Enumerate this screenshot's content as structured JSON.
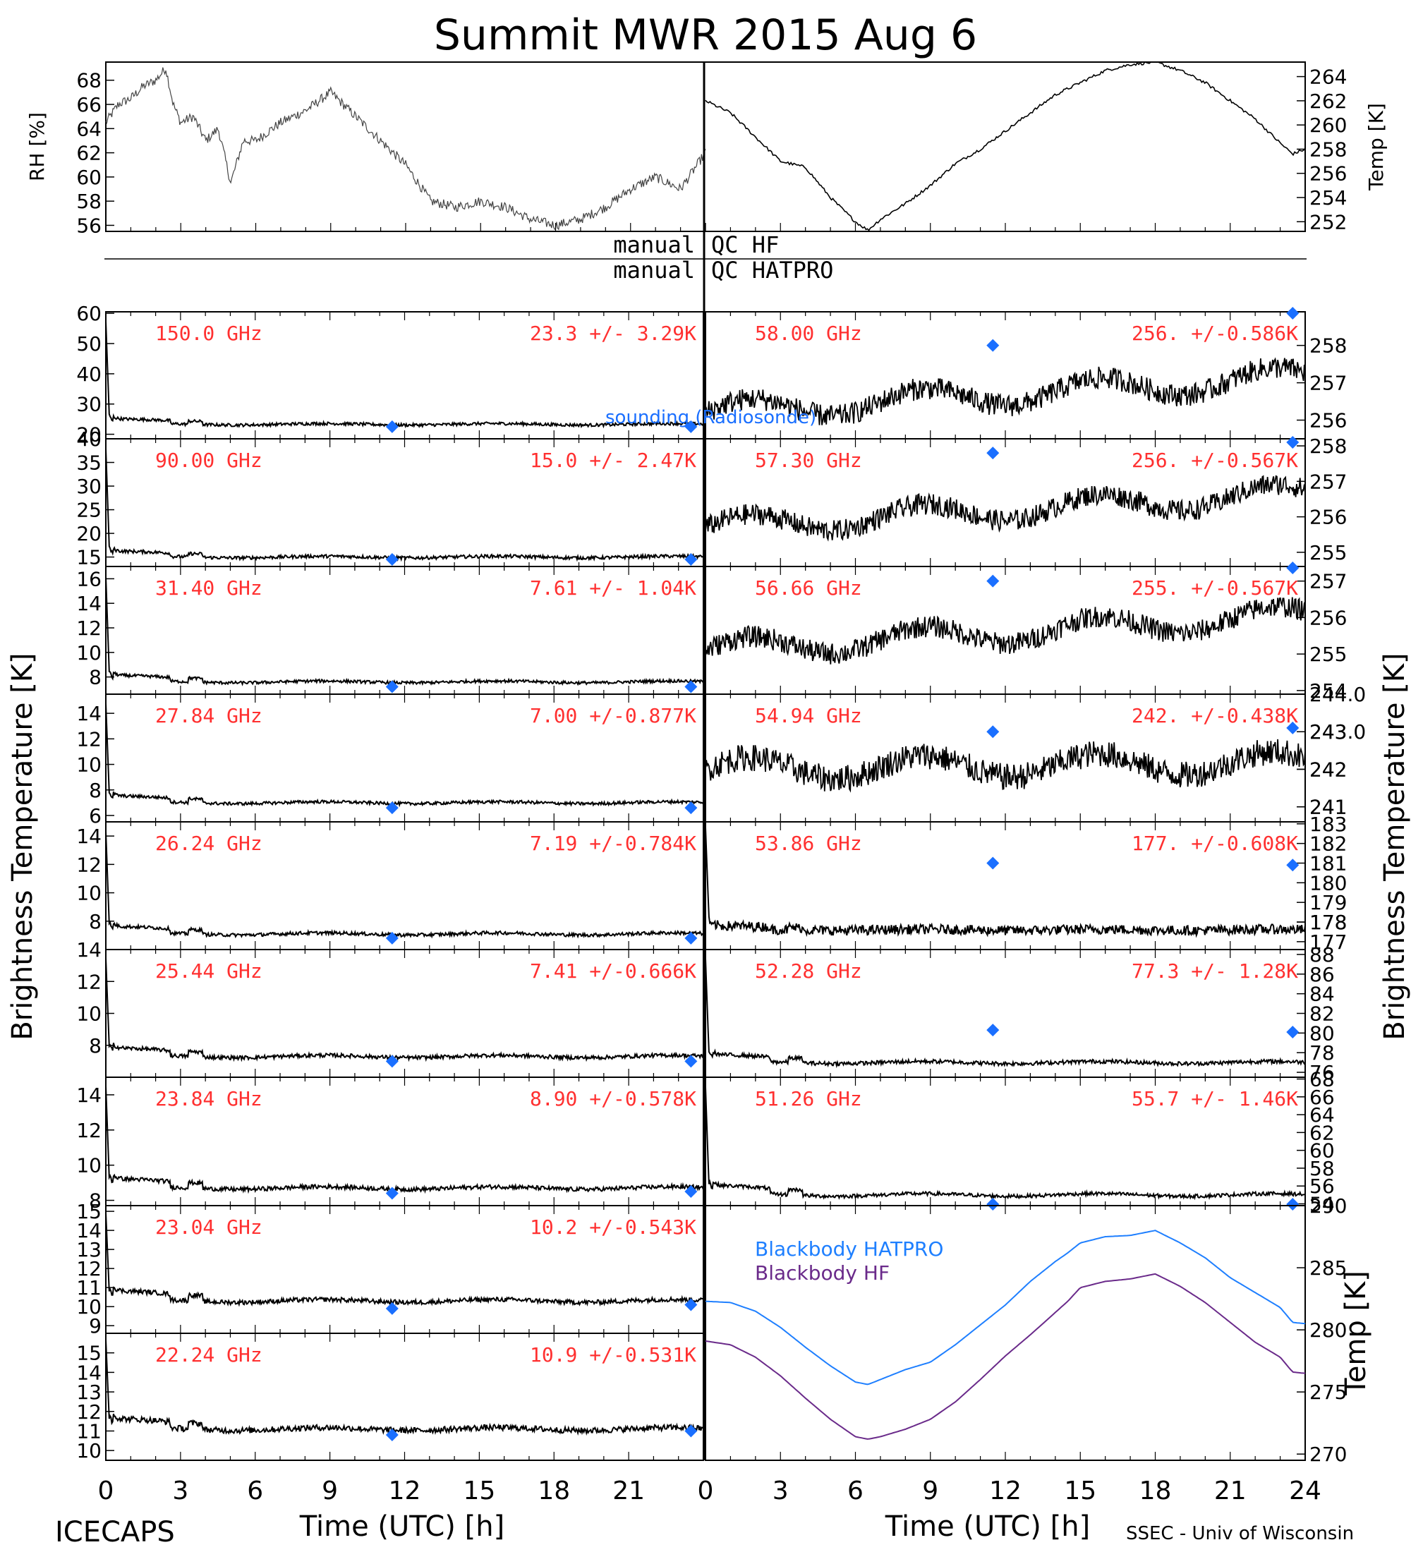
{
  "title": "Summit MWR 2015 Aug  6",
  "footer_left": "ICECAPS",
  "footer_right": "SSEC - Univ of Wisconsin",
  "xlabel": "Time (UTC) [h]",
  "left_ylabel": "Brightness Temperature [K]",
  "right_ylabel": "Brightness Temperature [K]",
  "qc_labels": {
    "hf_left": "manual",
    "hf_right": "QC HF",
    "hatpro_left": "manual",
    "hatpro_right": "QC HATPRO"
  },
  "sounding_label": "sounding (Radiosonde)",
  "colors": {
    "trace": "#000000",
    "channel_text": "#ff3030",
    "sounding": "#1a6fff",
    "bb_hatpro": "#1e7fff",
    "bb_hf": "#6a2a8a"
  },
  "chart_data": [
    {
      "id": "met",
      "type": "line",
      "xlim": [
        0,
        24
      ],
      "left_axis": {
        "label": "RH [%]",
        "ticks": [
          "56",
          "58",
          "60",
          "62",
          "64",
          "66",
          "68"
        ],
        "ylim": [
          55.5,
          69.5
        ]
      },
      "right_axis": {
        "label": "Temp [K]",
        "ticks": [
          "252",
          "254",
          "256",
          "258",
          "260",
          "262",
          "264"
        ],
        "ylim": [
          251.2,
          265.2
        ]
      },
      "series": [
        {
          "axis": "left",
          "x": [
            0,
            0.5,
            1,
            1.5,
            2,
            2.4,
            2.7,
            3,
            3.5,
            4,
            4.5,
            5,
            5.5,
            6,
            7,
            8,
            9,
            10,
            11,
            12,
            13,
            14,
            15,
            16,
            17,
            18,
            19,
            20,
            21,
            22,
            23,
            24
          ],
          "y": [
            64.5,
            66,
            66.5,
            67.5,
            68,
            69,
            66,
            64.5,
            65,
            63,
            64,
            59.5,
            63,
            63,
            64.5,
            65.5,
            67,
            65,
            63,
            61,
            58,
            57.5,
            58,
            57.5,
            56.5,
            56,
            56.5,
            57.5,
            59,
            60,
            59,
            62
          ]
        },
        {
          "axis": "right",
          "x": [
            0,
            1,
            2,
            3,
            4,
            5,
            6,
            6.5,
            7,
            8,
            9,
            10,
            11,
            12,
            13,
            14,
            15,
            16,
            17,
            18,
            19,
            20,
            21,
            22,
            23,
            23.5,
            24
          ],
          "y": [
            262,
            261,
            259,
            257,
            256.5,
            254,
            252,
            251.3,
            252.2,
            253.5,
            255,
            256.8,
            258,
            259.5,
            261,
            262.5,
            263.5,
            264.5,
            265,
            265.2,
            264.5,
            263.5,
            262,
            260.5,
            258.5,
            257.6,
            258
          ]
        }
      ]
    },
    {
      "id": "L150",
      "type": "line",
      "label": "150.0 GHz",
      "stats": "23.3 +/-  3.29K",
      "ticks": [
        "20",
        "30",
        "40",
        "50",
        "60"
      ],
      "ylim": [
        18.5,
        60.5
      ],
      "mean": 23.3,
      "noise": 0.5,
      "shape": "trop",
      "amp": 1.0,
      "sounding": [
        [
          11.5,
          22.5
        ],
        [
          23.5,
          22.5
        ]
      ]
    },
    {
      "id": "L90",
      "type": "line",
      "label": "90.00 GHz",
      "stats": "15.0 +/-  2.47K",
      "ticks": [
        "15",
        "20",
        "25",
        "30",
        "35",
        "40"
      ],
      "ylim": [
        13,
        40
      ],
      "mean": 15.0,
      "noise": 0.35,
      "shape": "trop",
      "amp": 0.7,
      "sounding": [
        [
          11.5,
          14.5
        ],
        [
          23.5,
          14.5
        ]
      ]
    },
    {
      "id": "L31",
      "type": "line",
      "label": "31.40 GHz",
      "stats": "7.61 +/- 1.04K",
      "ticks": [
        "8",
        "10",
        "12",
        "14",
        "16"
      ],
      "ylim": [
        6.6,
        17
      ],
      "mean": 7.6,
      "noise": 0.12,
      "shape": "trop",
      "amp": 0.3,
      "sounding": [
        [
          11.5,
          7.2
        ],
        [
          23.5,
          7.2
        ]
      ]
    },
    {
      "id": "L27",
      "type": "line",
      "label": "27.84 GHz",
      "stats": "7.00 +/-0.877K",
      "ticks": [
        "6",
        "8",
        "10",
        "12",
        "14"
      ],
      "ylim": [
        5.5,
        15.5
      ],
      "mean": 7.0,
      "noise": 0.12,
      "shape": "trop",
      "amp": 0.3,
      "sounding": [
        [
          11.5,
          6.6
        ],
        [
          23.5,
          6.6
        ]
      ]
    },
    {
      "id": "L26",
      "type": "line",
      "label": "26.24 GHz",
      "stats": "7.19 +/-0.784K",
      "ticks": [
        "8",
        "10",
        "12",
        "14"
      ],
      "ylim": [
        6,
        15
      ],
      "mean": 7.1,
      "noise": 0.12,
      "shape": "trop",
      "amp": 0.3,
      "sounding": [
        [
          11.5,
          6.8
        ],
        [
          23.5,
          6.8
        ]
      ]
    },
    {
      "id": "L25",
      "type": "line",
      "label": "25.44 GHz",
      "stats": "7.41 +/-0.666K",
      "ticks": [
        "8",
        "10",
        "12",
        "14"
      ],
      "ylim": [
        6,
        14
      ],
      "mean": 7.3,
      "noise": 0.12,
      "shape": "trop",
      "amp": 0.3,
      "sounding": [
        [
          11.5,
          7.0
        ],
        [
          23.5,
          7.0
        ]
      ]
    },
    {
      "id": "L23",
      "type": "line",
      "label": "23.84 GHz",
      "stats": "8.90 +/-0.578K",
      "ticks": [
        "8",
        "10",
        "12",
        "14"
      ],
      "ylim": [
        7.7,
        15
      ],
      "mean": 8.7,
      "noise": 0.12,
      "shape": "trop",
      "amp": 0.3,
      "sounding": [
        [
          11.5,
          8.4
        ],
        [
          23.5,
          8.5
        ]
      ]
    },
    {
      "id": "L2304",
      "type": "line",
      "label": "23.04 GHz",
      "stats": "10.2 +/-0.543K",
      "ticks": [
        "9",
        "10",
        "11",
        "12",
        "13",
        "14",
        "15"
      ],
      "ylim": [
        8.6,
        15.3
      ],
      "mean": 10.3,
      "noise": 0.12,
      "shape": "trop",
      "amp": 0.3,
      "sounding": [
        [
          11.5,
          9.9
        ],
        [
          23.5,
          10.1
        ]
      ]
    },
    {
      "id": "L2224",
      "type": "line",
      "label": "22.24 GHz",
      "stats": "10.9 +/-0.531K",
      "ticks": [
        "10",
        "11",
        "12",
        "13",
        "14",
        "15"
      ],
      "ylim": [
        9.5,
        16
      ],
      "mean": 11.1,
      "noise": 0.15,
      "shape": "trop",
      "amp": 0.3,
      "sounding": [
        [
          11.5,
          10.8
        ],
        [
          23.5,
          11.0
        ]
      ]
    },
    {
      "id": "R58",
      "type": "line",
      "label": "58.00 GHz",
      "stats": "256. +/-0.586K",
      "ticks": [
        "256",
        "257",
        "258"
      ],
      "ylim": [
        255.5,
        258.9
      ],
      "mean": 256.5,
      "noise": 0.25,
      "shape": "oxy",
      "trend": 1.6,
      "sounding": [
        [
          11.5,
          258.0
        ],
        [
          23.5,
          258.9
        ]
      ]
    },
    {
      "id": "R57",
      "type": "line",
      "label": "57.30 GHz",
      "stats": "256. +/-0.567K",
      "ticks": [
        "255",
        "256",
        "257",
        "258"
      ],
      "ylim": [
        254.6,
        258.2
      ],
      "mean": 256.0,
      "noise": 0.25,
      "shape": "oxy",
      "trend": 1.6,
      "sounding": [
        [
          11.5,
          257.8
        ],
        [
          23.5,
          258.1
        ]
      ]
    },
    {
      "id": "R56",
      "type": "line",
      "label": "56.66 GHz",
      "stats": "255. +/-0.567K",
      "ticks": [
        "254",
        "255",
        "256",
        "257"
      ],
      "ylim": [
        253.9,
        257.4
      ],
      "mean": 255.4,
      "noise": 0.25,
      "shape": "oxy",
      "trend": 1.6,
      "sounding": [
        [
          11.5,
          257.0
        ],
        [
          23.5,
          257.4
        ]
      ]
    },
    {
      "id": "R54",
      "type": "line",
      "label": "54.94 GHz",
      "stats": "242. +/-0.438K",
      "ticks": [
        "241",
        "241",
        "242",
        "242",
        "243",
        "243.0",
        "244.0"
      ],
      "ylim": [
        240.6,
        244.0
      ],
      "mean": 242.3,
      "noise": 0.3,
      "shape": "oxy",
      "trend": 0.3,
      "sounding": [
        [
          11.5,
          243.0
        ],
        [
          23.5,
          243.1
        ]
      ]
    },
    {
      "id": "R53",
      "type": "line",
      "label": "53.86 GHz",
      "stats": "177. +/-0.608K",
      "ticks": [
        "177",
        "178",
        "178",
        "179",
        "180",
        "181",
        "182",
        "183"
      ],
      "ylim": [
        176.6,
        183.1
      ],
      "mean": 177.6,
      "noise": 0.25,
      "shape": "trop",
      "amp": 0.12,
      "sounding": [
        [
          11.5,
          181.0
        ],
        [
          23.5,
          180.9
        ]
      ]
    },
    {
      "id": "R52",
      "type": "line",
      "label": "52.28 GHz",
      "stats": "77.3 +/- 1.28K",
      "ticks": [
        "76",
        "78",
        "80",
        "82",
        "84",
        "86",
        "88"
      ],
      "ylim": [
        75.5,
        88.5
      ],
      "mean": 77.0,
      "noise": 0.2,
      "shape": "trop",
      "amp": 0.45,
      "sounding": [
        [
          11.5,
          80.3
        ],
        [
          23.5,
          80.1
        ]
      ]
    },
    {
      "id": "R51",
      "type": "line",
      "label": "51.26 GHz",
      "stats": "55.7 +/- 1.46K",
      "ticks": [
        "54",
        "56",
        "58",
        "60",
        "62",
        "64",
        "66",
        "68"
      ],
      "ylim": [
        53.8,
        68.2
      ],
      "mean": 55.0,
      "noise": 0.2,
      "shape": "trop",
      "amp": 0.6,
      "sounding": [
        [
          11.5,
          53.8
        ],
        [
          23.5,
          53.8
        ]
      ]
    },
    {
      "id": "bb",
      "type": "line",
      "ylabel": "Temp [K]",
      "ticks": [
        "270",
        "275",
        "280",
        "285",
        "290"
      ],
      "ylim": [
        269.5,
        290
      ],
      "series": [
        {
          "name": "Blackbody HATPRO",
          "x": [
            0,
            1,
            2,
            3,
            4,
            5,
            6,
            6.5,
            7,
            8,
            9,
            10,
            11,
            12,
            13,
            14,
            14.5,
            15,
            16,
            17,
            17.5,
            18,
            19,
            20,
            21,
            22,
            23,
            23.5,
            24
          ],
          "y": [
            282.3,
            282.2,
            281.5,
            280.2,
            278.6,
            277.1,
            275.8,
            275.6,
            276,
            276.8,
            277.4,
            278.8,
            280.4,
            282,
            283.9,
            285.5,
            286.2,
            287,
            287.5,
            287.6,
            287.8,
            288,
            287,
            285.8,
            284.2,
            283,
            281.8,
            280.6,
            280.5
          ]
        },
        {
          "name": "Blackbody HF",
          "x": [
            0,
            1,
            2,
            3,
            4,
            5,
            6,
            6.5,
            7,
            8,
            9,
            10,
            11,
            12,
            13,
            14,
            14.5,
            15,
            16,
            17,
            17.5,
            18,
            19,
            20,
            21,
            22,
            23,
            23.5,
            24
          ],
          "y": [
            279.1,
            278.8,
            277.8,
            276.3,
            274.5,
            272.8,
            271.4,
            271.2,
            271.4,
            272,
            272.8,
            274.2,
            276,
            277.9,
            279.6,
            281.4,
            282.3,
            283.4,
            283.9,
            284.1,
            284.3,
            284.5,
            283.5,
            282.2,
            280.6,
            279,
            277.8,
            276.6,
            276.5
          ]
        }
      ]
    }
  ],
  "x_ticks_left": [
    "0",
    "3",
    "6",
    "9",
    "12",
    "15",
    "18",
    "21"
  ],
  "x_ticks_right": [
    "0",
    "3",
    "6",
    "9",
    "12",
    "15",
    "18",
    "21",
    "24"
  ]
}
